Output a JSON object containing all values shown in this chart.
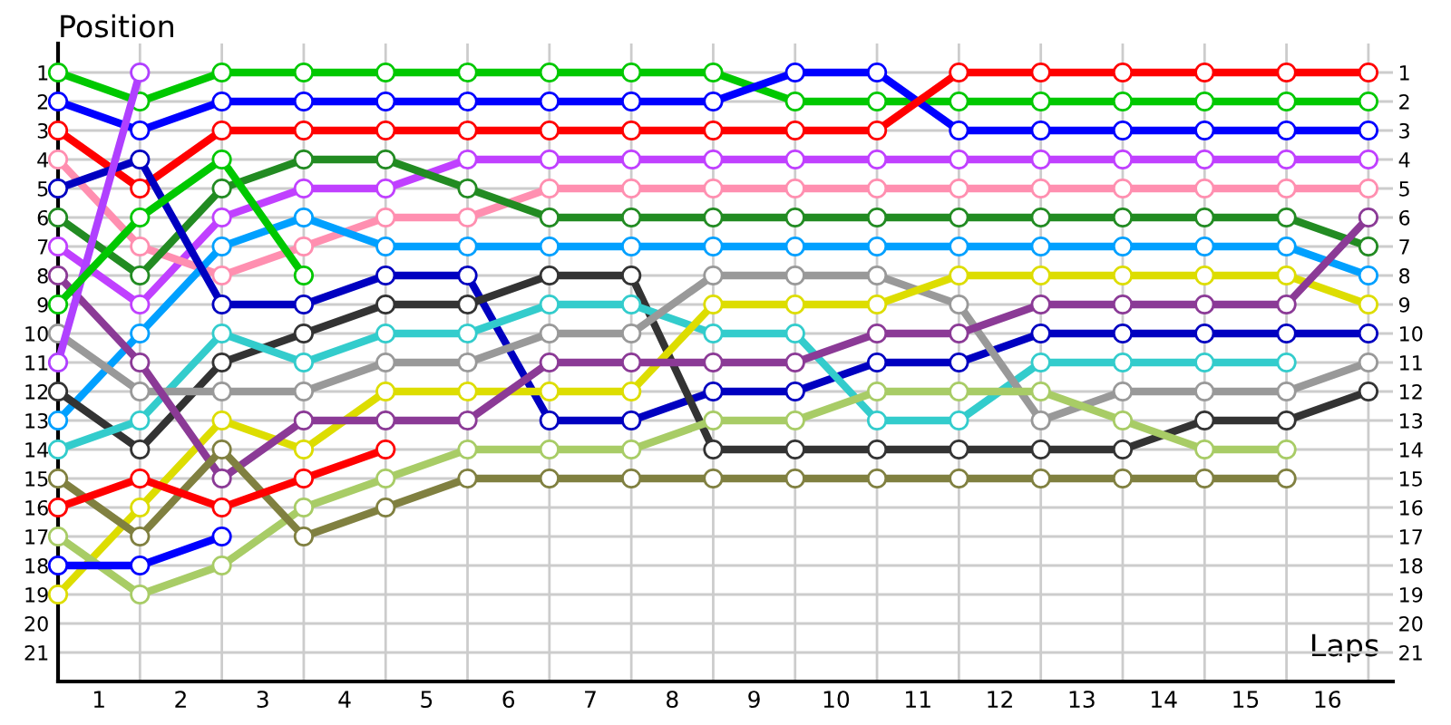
{
  "chart_data": {
    "type": "line",
    "ylabel": "Position",
    "xlabel": "Laps",
    "x": [
      0,
      1,
      2,
      3,
      4,
      5,
      6,
      7,
      8,
      9,
      10,
      11,
      12,
      13,
      14,
      15,
      16
    ],
    "xlim": [
      0,
      16.3
    ],
    "ylim": [
      22,
      0
    ],
    "y2lim": [
      22,
      0
    ],
    "xticks": [
      {
        "value": 0,
        "label": null
      },
      {
        "value": 0.5,
        "label": "1"
      },
      {
        "value": 1,
        "label": null
      },
      {
        "value": 1.5,
        "label": "2"
      },
      {
        "value": 2,
        "label": null
      },
      {
        "value": 2.5,
        "label": "3"
      },
      {
        "value": 3,
        "label": null
      },
      {
        "value": 3.5,
        "label": "4"
      },
      {
        "value": 4,
        "label": null
      },
      {
        "value": 4.5,
        "label": "5"
      },
      {
        "value": 5,
        "label": null
      },
      {
        "value": 5.5,
        "label": "6"
      },
      {
        "value": 6,
        "label": null
      },
      {
        "value": 6.5,
        "label": "7"
      },
      {
        "value": 7,
        "label": null
      },
      {
        "value": 7.5,
        "label": "8"
      },
      {
        "value": 8,
        "label": null
      },
      {
        "value": 8.5,
        "label": "9"
      },
      {
        "value": 9,
        "label": null
      },
      {
        "value": 9.5,
        "label": "10"
      },
      {
        "value": 10,
        "label": null
      },
      {
        "value": 10.5,
        "label": "11"
      },
      {
        "value": 11,
        "label": null
      },
      {
        "value": 11.5,
        "label": "12"
      },
      {
        "value": 12,
        "label": null
      },
      {
        "value": 12.5,
        "label": "13"
      },
      {
        "value": 13,
        "label": null
      },
      {
        "value": 13.5,
        "label": "14"
      },
      {
        "value": 14,
        "label": null
      },
      {
        "value": 14.5,
        "label": "15"
      },
      {
        "value": 15,
        "label": null
      },
      {
        "value": 15.5,
        "label": "16"
      },
      {
        "value": 16,
        "label": null
      }
    ],
    "yticks": [
      1,
      2,
      3,
      4,
      5,
      6,
      7,
      8,
      9,
      10,
      11,
      12,
      13,
      14,
      15,
      16,
      17,
      18,
      19,
      20,
      21
    ],
    "y2ticks": [
      1,
      2,
      3,
      4,
      5,
      6,
      7,
      8,
      9,
      10,
      11,
      12,
      13,
      14,
      15,
      16,
      17,
      18,
      19,
      20,
      21
    ],
    "grid": true,
    "marker": "circle",
    "line_style": "solid",
    "legend": false,
    "series": [
      {
        "color": "#00c800",
        "values": [
          1,
          2,
          1,
          1,
          1,
          1,
          1,
          1,
          1,
          2,
          2,
          2,
          2,
          2,
          2,
          2,
          2
        ]
      },
      {
        "color": "#0000ff",
        "values": [
          2,
          3,
          2,
          2,
          2,
          2,
          2,
          2,
          2,
          1,
          1,
          3,
          3,
          3,
          3,
          3,
          3
        ]
      },
      {
        "color": "#ff0000",
        "values": [
          3,
          5,
          3,
          3,
          3,
          3,
          3,
          3,
          3,
          3,
          3,
          1,
          1,
          1,
          1,
          1,
          1
        ]
      },
      {
        "color": "#c040ff",
        "values": [
          7,
          9,
          6,
          5,
          5,
          4,
          4,
          4,
          4,
          4,
          4,
          4,
          4,
          4,
          4,
          4,
          4
        ]
      },
      {
        "color": "#ff8fb0",
        "values": [
          4,
          7,
          8,
          7,
          6,
          6,
          5,
          5,
          5,
          5,
          5,
          5,
          5,
          5,
          5,
          5,
          5
        ]
      },
      {
        "color": "#228b22",
        "values": [
          6,
          8,
          5,
          4,
          4,
          5,
          6,
          6,
          6,
          6,
          6,
          6,
          6,
          6,
          6,
          6,
          7
        ]
      },
      {
        "color": "#00a0ff",
        "values": [
          13,
          10,
          7,
          6,
          7,
          7,
          7,
          7,
          7,
          7,
          7,
          7,
          7,
          7,
          7,
          7,
          8
        ]
      },
      {
        "color": "#0000c0",
        "values": [
          5,
          4,
          9,
          9,
          8,
          8,
          13,
          13,
          12,
          12,
          11,
          11,
          10,
          10,
          10,
          10,
          10
        ]
      },
      {
        "color": "#333333",
        "values": [
          12,
          14,
          11,
          10,
          9,
          9,
          8,
          8,
          14,
          14,
          14,
          14,
          14,
          14,
          13,
          13,
          12
        ]
      },
      {
        "color": "#33cccc",
        "values": [
          14,
          13,
          10,
          11,
          10,
          10,
          9,
          9,
          10,
          10,
          13,
          13,
          11,
          11,
          11,
          11,
          null
        ]
      },
      {
        "color": "#999999",
        "values": [
          10,
          12,
          12,
          12,
          11,
          11,
          10,
          10,
          8,
          8,
          8,
          9,
          13,
          12,
          12,
          12,
          11
        ]
      },
      {
        "color": "#dddd00",
        "values": [
          19,
          16,
          13,
          14,
          12,
          12,
          12,
          12,
          9,
          9,
          9,
          8,
          8,
          8,
          8,
          8,
          9
        ]
      },
      {
        "color": "#8b3a96",
        "values": [
          8,
          11,
          15,
          13,
          13,
          13,
          11,
          11,
          11,
          11,
          10,
          10,
          9,
          9,
          9,
          9,
          6
        ]
      },
      {
        "color": "#a8cc66",
        "values": [
          17,
          19,
          18,
          16,
          15,
          14,
          14,
          14,
          13,
          13,
          12,
          12,
          12,
          13,
          14,
          14,
          null
        ]
      },
      {
        "color": "#808040",
        "values": [
          15,
          17,
          14,
          17,
          16,
          15,
          15,
          15,
          15,
          15,
          15,
          15,
          15,
          15,
          15,
          15,
          null
        ]
      },
      {
        "color": "#b040ff",
        "values": [
          11,
          1,
          null,
          null,
          null,
          null,
          null,
          null,
          null,
          null,
          null,
          null,
          null,
          null,
          null,
          null,
          null
        ]
      },
      {
        "color": "#00c800",
        "values": [
          9,
          6,
          4,
          8,
          null,
          null,
          null,
          null,
          null,
          null,
          null,
          null,
          null,
          null,
          null,
          null,
          null
        ]
      },
      {
        "color": "#ff0000",
        "values": [
          16,
          15,
          16,
          15,
          14,
          null,
          null,
          null,
          null,
          null,
          null,
          null,
          null,
          null,
          null,
          null,
          null
        ]
      },
      {
        "color": "#0000ff",
        "values": [
          18,
          18,
          17,
          null,
          null,
          null,
          null,
          null,
          null,
          null,
          null,
          null,
          null,
          null,
          null,
          null,
          null
        ]
      }
    ]
  }
}
